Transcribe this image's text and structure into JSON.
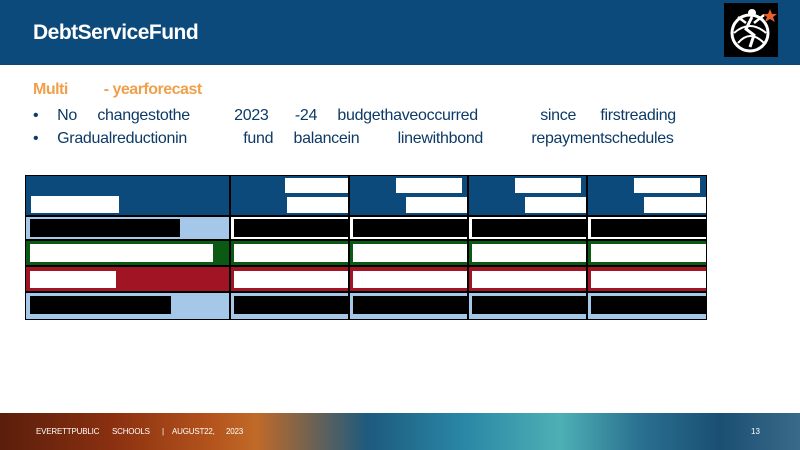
{
  "header": {
    "title": "DebtServiceFund"
  },
  "body": {
    "subtitle_part1": "Multi",
    "subtitle_part2": "- yearforecast",
    "bullets": [
      {
        "dot": "•",
        "parts": [
          "No",
          "changestothe",
          "2023",
          "-24",
          "budgethaveoccurred",
          "since",
          "firstreading"
        ]
      },
      {
        "dot": "•",
        "parts": [
          "Gradualreductionin",
          "fund",
          "balancein",
          "linewithbond",
          "repaymentschedules"
        ]
      }
    ]
  },
  "footer": {
    "org_part1": "EVERETTPUBLIC",
    "org_part2": "SCHOOLS",
    "separator": "|",
    "date_part1": "AUGUST22,",
    "date_part2": "2023",
    "page_number": "13"
  },
  "colors": {
    "header_blue": "#0d4a7c",
    "accent_orange": "#f0a04b",
    "row_green": "#0a5a14",
    "row_red": "#a01424",
    "row_lightblue": "#a6c8e8"
  }
}
